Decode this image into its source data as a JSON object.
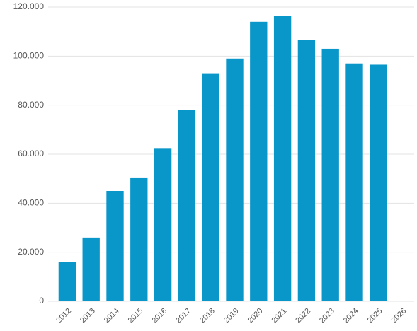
{
  "chart_data": {
    "type": "bar",
    "categories": [
      "2012",
      "2013",
      "2014",
      "2015",
      "2016",
      "2017",
      "2018",
      "2019",
      "2020",
      "2021",
      "2022",
      "2023",
      "2024",
      "2025",
      "2026"
    ],
    "values": [
      16000,
      26000,
      45000,
      50500,
      62500,
      78000,
      93000,
      99000,
      114000,
      116500,
      106700,
      103000,
      97000,
      96500,
      null
    ],
    "color": "#0996c9",
    "ylim": [
      0,
      120000
    ],
    "yticks": [
      0,
      {
        "value": 20000,
        "label": "20.000"
      },
      {
        "value": 40000,
        "label": "40.000"
      },
      {
        "value": 60000,
        "label": "60.000"
      },
      {
        "value": 80000,
        "label": "80.000"
      },
      {
        "value": 100000,
        "label": "100.000"
      },
      {
        "value": 120000,
        "label": "120.000"
      }
    ],
    "grid": true
  }
}
